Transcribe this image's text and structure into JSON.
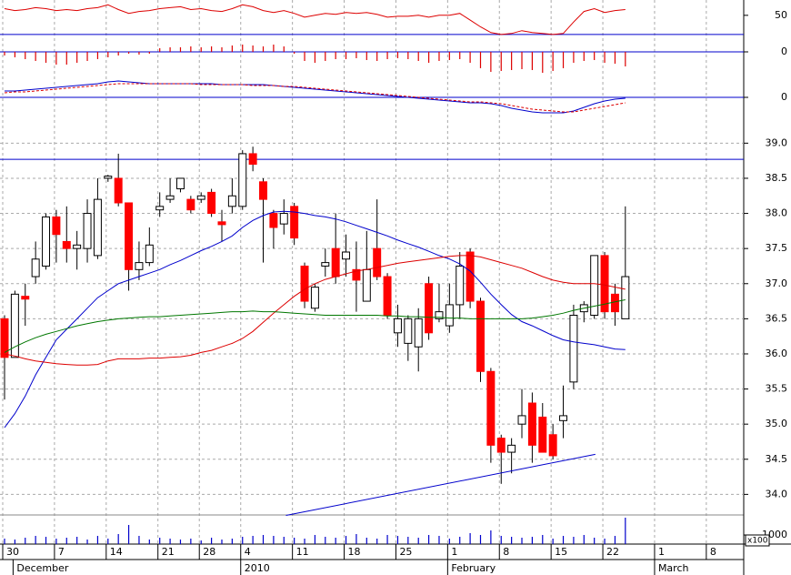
{
  "chart_data": [
    {
      "type": "candlestick",
      "up_color": "#ffffff",
      "down_color": "#ff0000",
      "xlim": [
        -0.44,
        71.44
      ],
      "xticks": [
        {
          "value": 0,
          "label": "30"
        },
        {
          "value": 5,
          "label": "7"
        },
        {
          "value": 10,
          "label": "14"
        },
        {
          "value": 15,
          "label": "21"
        },
        {
          "value": 19,
          "label": "28"
        },
        {
          "value": 23,
          "label": "4"
        },
        {
          "value": 28,
          "label": "11"
        },
        {
          "value": 33,
          "label": "18"
        },
        {
          "value": 38,
          "label": "25"
        },
        {
          "value": 43,
          "label": "1"
        },
        {
          "value": 48,
          "label": "8"
        },
        {
          "value": 53,
          "label": "15"
        },
        {
          "value": 58,
          "label": "22"
        },
        {
          "value": 63,
          "label": "1"
        },
        {
          "value": 68,
          "label": "8"
        }
      ],
      "month_ticks": [
        {
          "value": 1,
          "label": "December"
        },
        {
          "value": 23,
          "label": "2010"
        },
        {
          "value": 43,
          "label": "February"
        },
        {
          "value": 63,
          "label": "March"
        }
      ],
      "ylim": [
        33.72,
        39.16
      ],
      "yticks": [
        {
          "value": 34,
          "label": "34.0"
        },
        34.5,
        {
          "value": 35,
          "label": "35.0"
        },
        35.5,
        {
          "value": 36,
          "label": "36.0"
        },
        36.5,
        {
          "value": 37,
          "label": "37.0"
        },
        37.5,
        {
          "value": 38,
          "label": "38.0"
        },
        38.5,
        {
          "value": 39,
          "label": "39.0"
        }
      ],
      "grid": true,
      "open": [
        36.5,
        35.95,
        36.82,
        37.1,
        37.25,
        37.95,
        37.6,
        37.5,
        37.5,
        37.4,
        38.5,
        38.5,
        38.15,
        37.2,
        37.3,
        38.05,
        38.2,
        38.35,
        38.2,
        38.2,
        38.3,
        37.88,
        38.1,
        38.1,
        38.85,
        38.45,
        38.0,
        37.85,
        38.1,
        37.25,
        36.65,
        37.25,
        37.5,
        37.35,
        37.2,
        36.75,
        37.5,
        37.1,
        36.3,
        36.15,
        36.1,
        37.0,
        36.5,
        36.4,
        36.7,
        37.45,
        36.75,
        35.75,
        34.8,
        34.6,
        35.0,
        35.3,
        35.1,
        34.85,
        35.05,
        35.6,
        36.6,
        36.55,
        37.4,
        36.85,
        36.5
      ],
      "high": [
        36.55,
        36.9,
        37.0,
        37.6,
        38.0,
        38.05,
        38.1,
        37.75,
        38.2,
        38.5,
        38.55,
        38.85,
        38.15,
        37.6,
        37.8,
        38.3,
        38.5,
        38.5,
        38.25,
        38.3,
        38.35,
        38.05,
        38.5,
        38.9,
        38.95,
        38.5,
        38.05,
        38.2,
        38.15,
        37.3,
        37.0,
        37.5,
        38.0,
        37.7,
        37.6,
        37.75,
        38.2,
        37.15,
        36.7,
        36.55,
        36.65,
        37.1,
        37.0,
        37.0,
        37.45,
        37.5,
        36.8,
        35.8,
        34.85,
        34.8,
        35.5,
        35.45,
        35.3,
        35.0,
        35.55,
        36.7,
        36.75,
        37.4,
        37.45,
        37.0,
        38.1
      ],
      "low": [
        35.35,
        35.95,
        36.4,
        37.0,
        37.2,
        37.3,
        37.3,
        37.2,
        37.3,
        37.35,
        38.45,
        38.1,
        36.9,
        37.05,
        37.25,
        37.95,
        38.15,
        38.3,
        38.0,
        38.15,
        37.95,
        37.6,
        38.0,
        38.05,
        38.6,
        37.3,
        37.5,
        37.7,
        37.55,
        36.65,
        36.6,
        37.1,
        37.0,
        37.1,
        36.6,
        36.75,
        37.05,
        36.5,
        36.1,
        35.9,
        35.75,
        36.2,
        36.45,
        36.3,
        36.5,
        36.65,
        35.6,
        34.45,
        34.15,
        34.3,
        34.8,
        34.45,
        34.6,
        34.5,
        34.8,
        35.5,
        36.45,
        36.5,
        36.5,
        36.4,
        36.5
      ],
      "close": [
        35.95,
        36.85,
        36.78,
        37.35,
        37.95,
        37.7,
        37.5,
        37.55,
        38.0,
        38.2,
        38.53,
        38.15,
        37.2,
        37.3,
        37.55,
        38.1,
        38.25,
        38.5,
        38.05,
        38.25,
        38.0,
        37.84,
        38.25,
        38.85,
        38.7,
        38.2,
        37.8,
        38.0,
        37.65,
        36.75,
        36.95,
        37.3,
        37.1,
        37.45,
        37.05,
        37.2,
        37.1,
        36.55,
        36.5,
        36.5,
        36.5,
        36.3,
        36.6,
        36.7,
        37.25,
        36.75,
        35.75,
        34.7,
        34.6,
        34.7,
        35.12,
        34.7,
        34.6,
        34.55,
        35.12,
        36.55,
        36.7,
        37.4,
        36.6,
        36.6,
        37.1
      ],
      "series": [
        {
          "color": "#0000cc",
          "values": [
            34.95,
            35.15,
            35.4,
            35.7,
            35.95,
            36.2,
            36.35,
            36.5,
            36.65,
            36.8,
            36.9,
            37.0,
            37.05,
            37.1,
            37.15,
            37.2,
            37.27,
            37.33,
            37.4,
            37.47,
            37.53,
            37.6,
            37.68,
            37.8,
            37.9,
            37.97,
            38.02,
            38.03,
            38.02,
            38.0,
            37.97,
            37.95,
            37.92,
            37.88,
            37.83,
            37.78,
            37.73,
            37.68,
            37.62,
            37.57,
            37.52,
            37.46,
            37.4,
            37.35,
            37.28,
            37.18,
            37.02,
            36.85,
            36.7,
            36.56,
            36.46,
            36.4,
            36.33,
            36.26,
            36.2,
            36.17,
            36.15,
            36.13,
            36.1,
            36.07,
            36.06
          ]
        },
        {
          "color": "#dd0000",
          "values": [
            36.0,
            35.97,
            35.93,
            35.9,
            35.88,
            35.86,
            35.85,
            35.84,
            35.84,
            35.85,
            35.9,
            35.93,
            35.93,
            35.93,
            35.94,
            35.94,
            35.95,
            35.96,
            35.98,
            36.02,
            36.05,
            36.1,
            36.15,
            36.22,
            36.32,
            36.45,
            36.58,
            36.7,
            36.82,
            36.92,
            37.0,
            37.06,
            37.1,
            37.14,
            37.18,
            37.2,
            37.23,
            37.26,
            37.29,
            37.31,
            37.33,
            37.35,
            37.37,
            37.39,
            37.4,
            37.4,
            37.38,
            37.34,
            37.3,
            37.26,
            37.22,
            37.16,
            37.1,
            37.05,
            37.02,
            37.0,
            37.0,
            37.0,
            36.98,
            36.95,
            36.92
          ]
        },
        {
          "color": "#007700",
          "values": [
            36.02,
            36.1,
            36.17,
            36.23,
            36.28,
            36.32,
            36.36,
            36.4,
            36.43,
            36.46,
            36.48,
            36.5,
            36.51,
            36.52,
            36.53,
            36.53,
            36.54,
            36.55,
            36.56,
            36.57,
            36.58,
            36.59,
            36.6,
            36.6,
            36.61,
            36.6,
            36.6,
            36.59,
            36.58,
            36.57,
            36.56,
            36.55,
            36.55,
            36.55,
            36.55,
            36.55,
            36.55,
            36.54,
            36.54,
            36.53,
            36.53,
            36.52,
            36.52,
            36.51,
            36.51,
            36.5,
            36.5,
            36.5,
            36.5,
            36.5,
            36.5,
            36.51,
            36.53,
            36.55,
            36.58,
            36.62,
            36.65,
            36.68,
            36.71,
            36.74,
            36.77
          ]
        }
      ],
      "hlines": [
        38.77
      ],
      "trendline": {
        "x": [
          27.2,
          57.1
        ],
        "values": [
          33.7,
          34.57
        ],
        "color": "#0000cc"
      }
    },
    {
      "type": "line",
      "ylim": [
        28,
        66
      ],
      "yticks": [
        50
      ],
      "hlines": [
        30
      ],
      "series": [
        {
          "color": "#dd0000",
          "values": [
            57,
            55,
            56,
            58,
            57,
            55,
            56,
            55,
            57,
            58,
            61,
            56,
            52,
            54,
            55,
            57,
            58,
            59,
            56,
            57,
            55,
            54,
            57,
            61,
            59,
            55,
            53,
            55,
            52,
            48,
            50,
            52,
            51,
            53,
            52,
            53,
            51,
            48,
            49,
            49,
            50,
            48,
            50,
            50,
            52,
            45,
            38,
            32,
            30,
            31,
            34,
            32,
            31,
            30,
            31,
            43,
            54,
            57,
            53,
            55,
            56
          ]
        }
      ]
    },
    {
      "type": "bar",
      "color": "#dd0000",
      "ylim": [
        -23,
        17
      ],
      "yticks": [
        0
      ],
      "hlines": [
        0
      ],
      "values": [
        -4,
        -6,
        -8,
        -10,
        -12,
        -14,
        -14,
        -12,
        -10,
        -8,
        -6,
        -4,
        -2,
        -3,
        -2,
        4,
        5,
        5,
        6,
        5,
        6,
        5,
        7,
        8,
        7,
        6,
        8,
        6,
        -2,
        -10,
        -12,
        -10,
        -8,
        -8,
        -7,
        -9,
        -10,
        -8,
        -7,
        -8,
        -10,
        -12,
        -10,
        -9,
        -8,
        -12,
        -18,
        -22,
        -21,
        -20,
        -19,
        -20,
        -23,
        -21,
        -18,
        -12,
        -10,
        -9,
        -12,
        -13,
        -16
      ]
    },
    {
      "type": "line",
      "ylim": [
        -33,
        27
      ],
      "yticks": [
        0
      ],
      "hlines": [
        0
      ],
      "series": [
        {
          "color": "#0000cc",
          "values": [
            7,
            7,
            8,
            9,
            10,
            11,
            12,
            13,
            14,
            15,
            17,
            18,
            17,
            16,
            15,
            15,
            15,
            15,
            15,
            15,
            15,
            14,
            14,
            14,
            14,
            14,
            13,
            12,
            11,
            10,
            9,
            8,
            7,
            6,
            5,
            4,
            3,
            2,
            1,
            0,
            -1,
            -2,
            -3,
            -4,
            -5,
            -6,
            -6,
            -7,
            -9,
            -12,
            -14,
            -16,
            -17,
            -17,
            -17,
            -15,
            -11,
            -7,
            -4,
            -2,
            -1
          ]
        },
        {
          "color": "#dd0000",
          "dashed": true,
          "values": [
            5,
            6,
            6,
            7,
            8,
            9,
            10,
            11,
            12,
            13,
            14,
            15,
            15,
            15,
            15,
            15,
            15,
            15,
            15,
            14,
            14,
            14,
            14,
            14,
            13,
            13,
            13,
            12,
            12,
            11,
            10,
            9,
            8,
            7,
            6,
            5,
            4,
            3,
            2,
            1,
            0,
            -1,
            -2,
            -3,
            -4,
            -5,
            -5,
            -6,
            -7,
            -9,
            -11,
            -13,
            -14,
            -15,
            -16,
            -16,
            -14,
            -12,
            -10,
            -8,
            -6
          ]
        }
      ]
    },
    {
      "type": "bar",
      "color": "#0000cc",
      "ylim": [
        0,
        3000
      ],
      "yticks": [
        1000
      ],
      "unit_label": "x100",
      "values": [
        600,
        500,
        700,
        900,
        800,
        600,
        700,
        800,
        500,
        900,
        600,
        1100,
        2100,
        900,
        500,
        700,
        600,
        500,
        600,
        400,
        700,
        500,
        600,
        800,
        900,
        1000,
        900,
        800,
        700,
        600,
        1000,
        800,
        700,
        900,
        1100,
        700,
        600,
        1000,
        900,
        800,
        700,
        1000,
        900,
        600,
        800,
        1200,
        1000,
        1500,
        900,
        800,
        700,
        800,
        1000,
        600,
        900,
        800,
        1000,
        700,
        600,
        900,
        2900
      ]
    }
  ]
}
